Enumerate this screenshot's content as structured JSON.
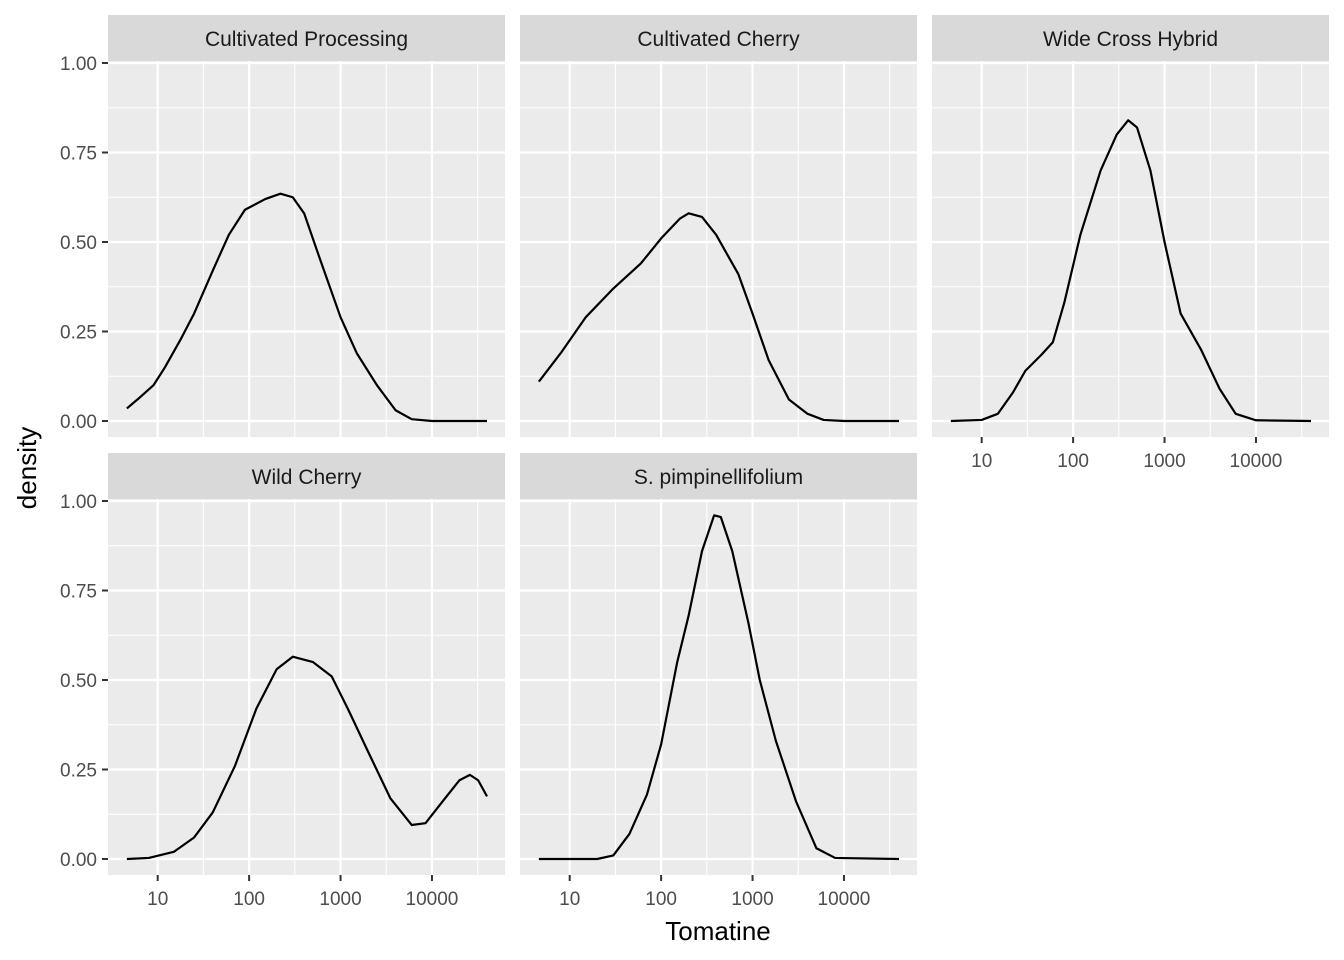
{
  "chart_data": {
    "type": "line",
    "subtype": "faceted density",
    "xlabel": "Tomatine",
    "ylabel": "density",
    "x_scale": "log10",
    "x_ticks": [
      10,
      100,
      1000,
      10000
    ],
    "x_tick_labels": [
      "10",
      "100",
      "1000",
      "10000"
    ],
    "y_ticks": [
      0,
      0.25,
      0.5,
      0.75,
      1.0
    ],
    "y_tick_labels": [
      "0.00",
      "0.25",
      "0.50",
      "0.75",
      "1.00"
    ],
    "xlim": [
      4.5,
      40000
    ],
    "ylim": [
      0,
      1.0
    ],
    "grid": true,
    "facets": [
      {
        "title": "Cultivated Processing",
        "points": [
          [
            4.6,
            0.035
          ],
          [
            6,
            0.06
          ],
          [
            9,
            0.1
          ],
          [
            12,
            0.15
          ],
          [
            18,
            0.23
          ],
          [
            25,
            0.3
          ],
          [
            40,
            0.42
          ],
          [
            60,
            0.52
          ],
          [
            90,
            0.59
          ],
          [
            150,
            0.62
          ],
          [
            220,
            0.635
          ],
          [
            300,
            0.625
          ],
          [
            400,
            0.58
          ],
          [
            600,
            0.45
          ],
          [
            1000,
            0.29
          ],
          [
            1500,
            0.19
          ],
          [
            2500,
            0.1
          ],
          [
            4000,
            0.03
          ],
          [
            6000,
            0.005
          ],
          [
            10000,
            0
          ],
          [
            40000,
            0
          ]
        ]
      },
      {
        "title": "Cultivated Cherry",
        "points": [
          [
            4.6,
            0.11
          ],
          [
            8,
            0.19
          ],
          [
            15,
            0.29
          ],
          [
            30,
            0.37
          ],
          [
            60,
            0.44
          ],
          [
            100,
            0.51
          ],
          [
            160,
            0.565
          ],
          [
            200,
            0.58
          ],
          [
            280,
            0.57
          ],
          [
            400,
            0.52
          ],
          [
            700,
            0.41
          ],
          [
            1000,
            0.3
          ],
          [
            1500,
            0.17
          ],
          [
            2500,
            0.06
          ],
          [
            4000,
            0.02
          ],
          [
            6000,
            0.003
          ],
          [
            10000,
            0
          ],
          [
            40000,
            0
          ]
        ]
      },
      {
        "title": "Wide Cross Hybrid",
        "points": [
          [
            4.6,
            0
          ],
          [
            10,
            0.003
          ],
          [
            15,
            0.02
          ],
          [
            22,
            0.08
          ],
          [
            30,
            0.14
          ],
          [
            45,
            0.185
          ],
          [
            60,
            0.22
          ],
          [
            80,
            0.33
          ],
          [
            120,
            0.52
          ],
          [
            200,
            0.7
          ],
          [
            300,
            0.8
          ],
          [
            400,
            0.84
          ],
          [
            500,
            0.82
          ],
          [
            700,
            0.7
          ],
          [
            1000,
            0.5
          ],
          [
            1500,
            0.3
          ],
          [
            2500,
            0.2
          ],
          [
            4000,
            0.09
          ],
          [
            6000,
            0.02
          ],
          [
            10000,
            0.002
          ],
          [
            40000,
            0
          ]
        ]
      },
      {
        "title": "Wild Cherry",
        "points": [
          [
            4.6,
            0
          ],
          [
            8,
            0.003
          ],
          [
            15,
            0.02
          ],
          [
            25,
            0.06
          ],
          [
            40,
            0.13
          ],
          [
            70,
            0.26
          ],
          [
            120,
            0.42
          ],
          [
            200,
            0.53
          ],
          [
            300,
            0.565
          ],
          [
            500,
            0.55
          ],
          [
            800,
            0.51
          ],
          [
            1200,
            0.42
          ],
          [
            2000,
            0.3
          ],
          [
            3500,
            0.17
          ],
          [
            6000,
            0.095
          ],
          [
            8500,
            0.1
          ],
          [
            13000,
            0.16
          ],
          [
            20000,
            0.22
          ],
          [
            26000,
            0.235
          ],
          [
            32000,
            0.22
          ],
          [
            40000,
            0.175
          ]
        ]
      },
      {
        "title": "S. pimpinellifolium",
        "points": [
          [
            4.6,
            0
          ],
          [
            20,
            0
          ],
          [
            30,
            0.01
          ],
          [
            45,
            0.07
          ],
          [
            70,
            0.18
          ],
          [
            100,
            0.32
          ],
          [
            150,
            0.55
          ],
          [
            200,
            0.68
          ],
          [
            280,
            0.86
          ],
          [
            380,
            0.96
          ],
          [
            450,
            0.955
          ],
          [
            600,
            0.86
          ],
          [
            900,
            0.66
          ],
          [
            1200,
            0.5
          ],
          [
            1800,
            0.33
          ],
          [
            3000,
            0.16
          ],
          [
            5000,
            0.03
          ],
          [
            8000,
            0.003
          ],
          [
            40000,
            0
          ]
        ]
      }
    ]
  }
}
